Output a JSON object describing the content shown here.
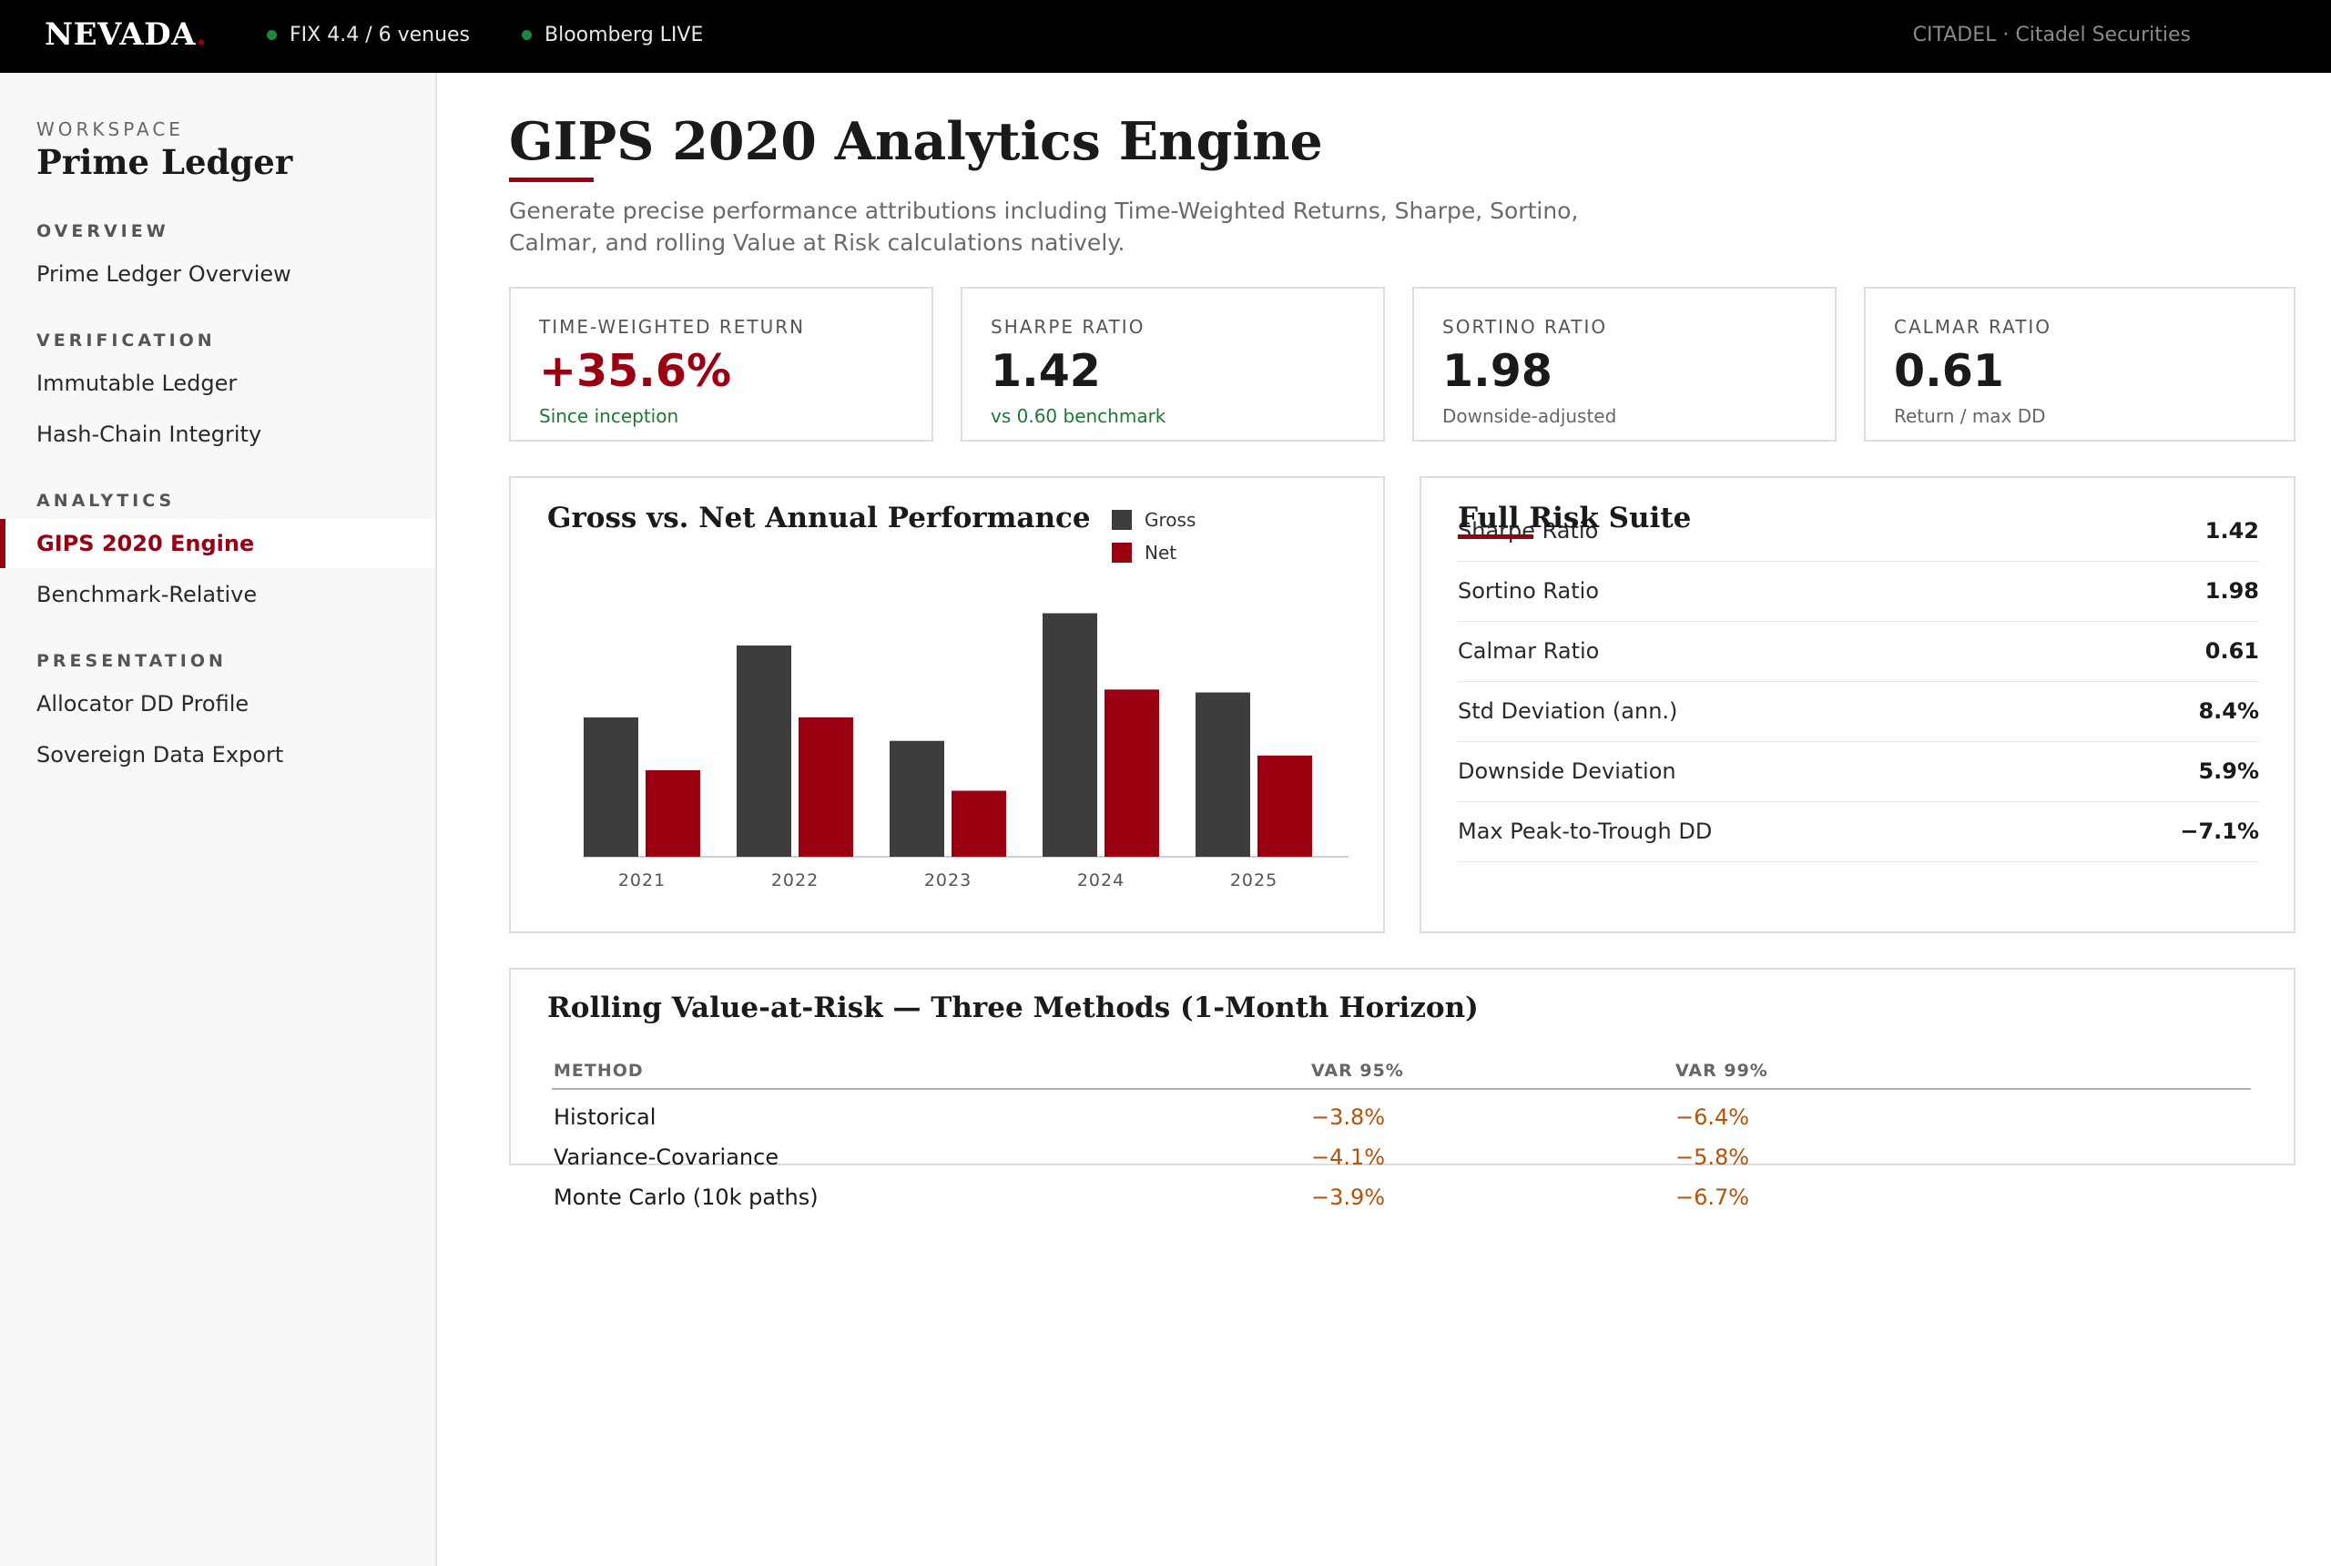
{
  "topbar": {
    "brand": "NEVADA",
    "brand_dot": ".",
    "status_items": [
      "FIX 4.4 / 6 venues",
      "Bloomberg LIVE"
    ],
    "account": "CITADEL · Citadel Securities"
  },
  "sidebar": {
    "workspace_label": "WORKSPACE",
    "workspace_name": "Prime Ledger",
    "sections": [
      {
        "title": "OVERVIEW",
        "items": [
          "Prime Ledger Overview"
        ]
      },
      {
        "title": "VERIFICATION",
        "items": [
          "Immutable Ledger",
          "Hash-Chain Integrity"
        ]
      },
      {
        "title": "ANALYTICS",
        "items": [
          "GIPS 2020 Engine",
          "Benchmark-Relative"
        ]
      },
      {
        "title": "PRESENTATION",
        "items": [
          "Allocator DD Profile",
          "Sovereign Data Export"
        ]
      }
    ],
    "active_item": "GIPS 2020 Engine"
  },
  "main": {
    "title": "GIPS 2020 Analytics Engine",
    "subtitle": "Generate precise performance attributions including Time-Weighted Returns, Sharpe, Sortino, Calmar, and rolling Value at Risk calculations natively.",
    "kpis": [
      {
        "label": "TIME-WEIGHTED RETURN",
        "value": "+35.6%",
        "sub": "Since inception"
      },
      {
        "label": "SHARPE RATIO",
        "value": "1.42",
        "sub": "vs 0.60 benchmark"
      },
      {
        "label": "SORTINO RATIO",
        "value": "1.98",
        "sub": "Downside-adjusted"
      },
      {
        "label": "CALMAR RATIO",
        "value": "0.61",
        "sub": "Return / max DD"
      }
    ],
    "risk_suite": {
      "title": "Full Risk Suite",
      "rows": [
        {
          "label": "Sharpe Ratio",
          "value": "1.42"
        },
        {
          "label": "Sortino Ratio",
          "value": "1.98"
        },
        {
          "label": "Calmar Ratio",
          "value": "0.61"
        },
        {
          "label": "Std Deviation (ann.)",
          "value": "8.4%"
        },
        {
          "label": "Downside Deviation",
          "value": "5.9%"
        },
        {
          "label": "Max Peak-to-Trough DD",
          "value": "−7.1%"
        }
      ]
    },
    "var_table": {
      "title": "Rolling Value-at-Risk — Three Methods (1-Month Horizon)",
      "headers": [
        "METHOD",
        "VAR 95%",
        "VAR 99%"
      ],
      "rows": [
        [
          "Historical",
          "−3.8%",
          "−6.4%"
        ],
        [
          "Variance-Covariance",
          "−4.1%",
          "−5.8%"
        ],
        [
          "Monte Carlo (10k paths)",
          "−3.9%",
          "−6.7%"
        ]
      ]
    }
  },
  "colors": {
    "accent": "#9b0012",
    "gross_bar": "#3d3d3d",
    "net_bar": "#9b0012",
    "positive": "#1a7a34",
    "var_negative": "#b5520a"
  },
  "chart_data": {
    "type": "bar",
    "title": "Gross vs. Net Annual Performance",
    "categories": [
      "2021",
      "2022",
      "2023",
      "2024",
      "2025"
    ],
    "series": [
      {
        "name": "Gross",
        "values": [
          9.5,
          14.4,
          7.9,
          16.6,
          11.2
        ]
      },
      {
        "name": "Net",
        "values": [
          5.9,
          9.5,
          4.5,
          11.4,
          6.9
        ]
      }
    ],
    "ylim": [
      0,
      18
    ],
    "legend": "top-right",
    "grid": false
  }
}
